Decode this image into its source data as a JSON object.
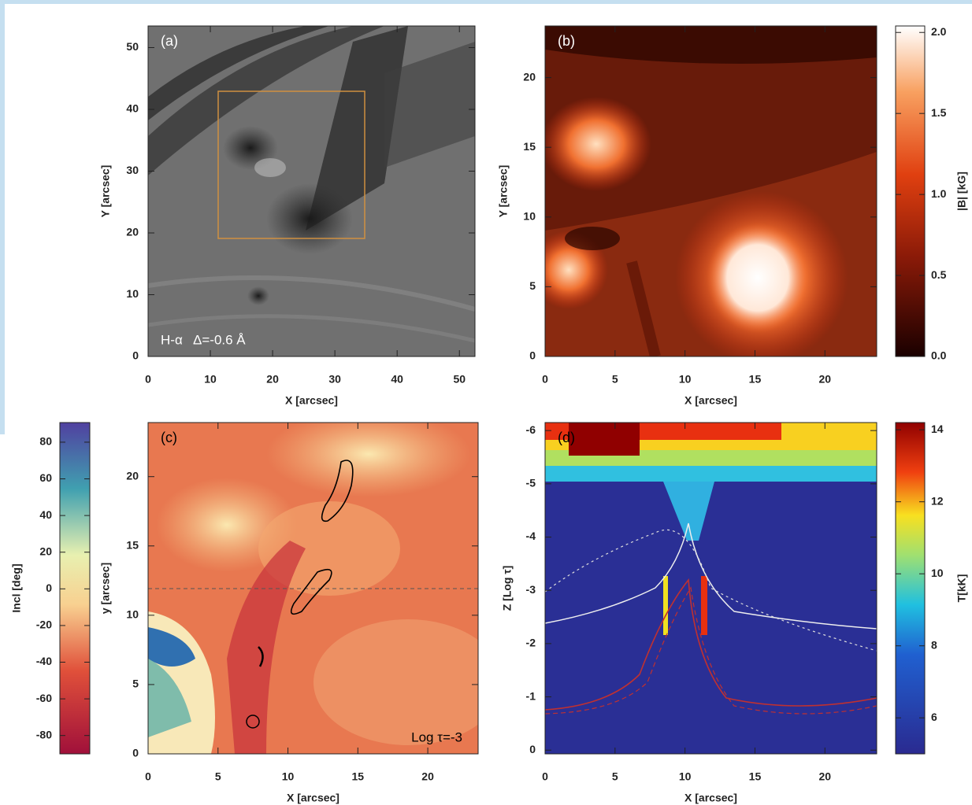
{
  "chart_data": [
    {
      "type": "image",
      "panel_label": "(a)",
      "text_color": "#ffffff",
      "colormap": "gray",
      "annotation": "H-α   Δ=-0.6 Å",
      "annotation_position": "lower left",
      "xlabel": "X [arcsec]",
      "ylabel": "Y [arcsec]",
      "xlim": [
        0,
        52.5
      ],
      "ylim": [
        0,
        53.5
      ],
      "xticks": [
        0,
        10,
        20,
        30,
        40,
        50
      ],
      "yticks": [
        0,
        10,
        20,
        30,
        40,
        50
      ]
    },
    {
      "type": "image",
      "panel_label": "(b)",
      "text_color": "#ffffff",
      "colormap": "hot",
      "xlabel": "X [arcsec]",
      "ylabel": "Y [arcsec]",
      "xlim": [
        0,
        23.7
      ],
      "ylim": [
        0,
        23.7
      ],
      "xticks": [
        0,
        5,
        10,
        15,
        20
      ],
      "yticks": [
        0,
        5,
        10,
        15,
        20
      ],
      "colorbar": {
        "label": "|B| [kG]",
        "position": "right",
        "lim": [
          0,
          2.04
        ],
        "ticks": [
          {
            "value": 0,
            "label": "0.0"
          },
          0.5,
          {
            "value": 1,
            "label": "1.0"
          },
          1.5,
          {
            "value": 2,
            "label": "2.0"
          }
        ]
      }
    },
    {
      "type": "image",
      "panel_label": "(c)",
      "text_color": "#000000",
      "colormap": "spectral",
      "annotation": "Log τ=-3",
      "annotation_position": "lower right",
      "xlabel": "X [arcsec]",
      "ylabel": "y [arcsec]",
      "xlim": [
        0,
        23.6
      ],
      "ylim": [
        0,
        23.9
      ],
      "xticks": [
        0,
        5,
        10,
        15,
        20
      ],
      "yticks": [
        0,
        5,
        10,
        15,
        20
      ],
      "colorbar": {
        "label": "Incl [deg]",
        "position": "left",
        "lim": [
          -90,
          90.7
        ],
        "ticks": [
          -80,
          -60,
          -40,
          -20,
          0,
          20,
          40,
          60,
          80
        ]
      }
    },
    {
      "type": "image",
      "panel_label": "(d)",
      "text_color": "#000000",
      "colormap": "jet",
      "xlabel": "X [arcsec]",
      "ylabel": "Z [Log τ]",
      "xlim": [
        0,
        23.7
      ],
      "ylim": [
        0.07,
        -6.15
      ],
      "xticks": [
        0,
        5,
        10,
        15,
        20
      ],
      "yticks": [
        0,
        -1,
        -2,
        -3,
        -4,
        -5,
        -6
      ],
      "colorbar": {
        "label": "T[kK]",
        "position": "right",
        "lim": [
          5.0,
          14.2
        ],
        "ticks": [
          6,
          8,
          10,
          12,
          14
        ]
      }
    }
  ]
}
